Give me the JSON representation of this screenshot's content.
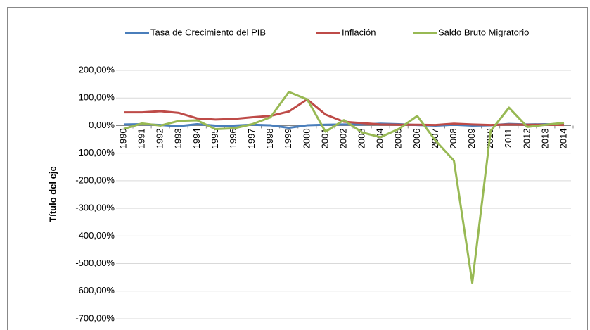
{
  "chart_data": {
    "type": "line",
    "y_axis_title": "Título del eje",
    "categories": [
      "1990",
      "1991",
      "1992",
      "1993",
      "1994",
      "1995",
      "1996",
      "1997",
      "1998",
      "1999",
      "2000",
      "2001",
      "2002",
      "2003",
      "2004",
      "2005",
      "2006",
      "2007",
      "2008",
      "2009",
      "2010",
      "2011",
      "2012",
      "2013",
      "2014"
    ],
    "series": [
      {
        "name": "Tasa de Crecimiento del PIB",
        "color": "#4a7ebb",
        "values": [
          4,
          5,
          2,
          -2,
          5,
          0,
          0,
          3,
          1,
          -8,
          1,
          3,
          4,
          4,
          7,
          5,
          2,
          0,
          3,
          0,
          1,
          6,
          4,
          5,
          3
        ]
      },
      {
        "name": "Inflación",
        "color": "#be4b48",
        "values": [
          48,
          48,
          52,
          46,
          26,
          22,
          24,
          30,
          35,
          51,
          95,
          40,
          14,
          9,
          4,
          3,
          3,
          2,
          7,
          4,
          2,
          4,
          3,
          3,
          2
        ]
      },
      {
        "name": "Saldo Bruto Migratorio",
        "color": "#98b954",
        "values": [
          -12,
          8,
          0,
          17,
          19,
          -13,
          -10,
          5,
          30,
          122,
          95,
          -22,
          20,
          -25,
          -42,
          -12,
          35,
          -55,
          -127,
          -570,
          -20,
          65,
          -5,
          3,
          10
        ]
      }
    ],
    "ylim": [
      -700,
      200
    ],
    "yticks": [
      {
        "value": 200,
        "label": "200,00%"
      },
      {
        "value": 100,
        "label": "100,00%"
      },
      {
        "value": 0,
        "label": "0,00%"
      },
      {
        "value": -100,
        "label": "-100,00%"
      },
      {
        "value": -200,
        "label": "-200,00%"
      },
      {
        "value": -300,
        "label": "-300,00%"
      },
      {
        "value": -400,
        "label": "-400,00%"
      },
      {
        "value": -500,
        "label": "-500,00%"
      },
      {
        "value": -600,
        "label": "-600,00%"
      },
      {
        "value": -700,
        "label": "-700,00%"
      }
    ],
    "grid": true,
    "legend": "top"
  }
}
